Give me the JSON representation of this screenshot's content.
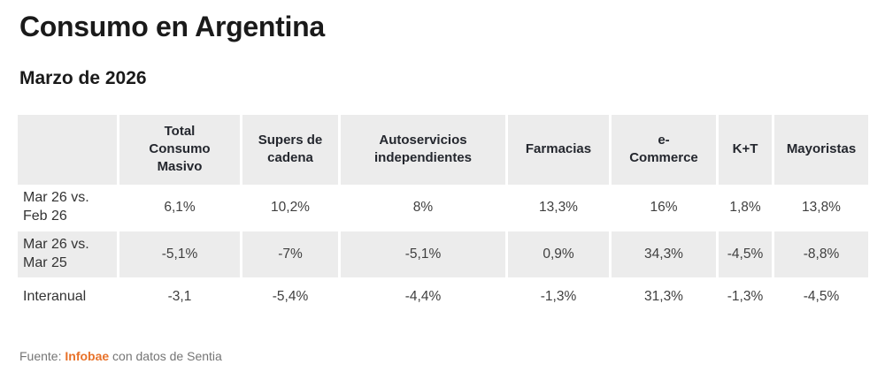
{
  "page": {
    "title": "Consumo en Argentina",
    "subtitle": "Marzo de 2026"
  },
  "chart_data": {
    "type": "table",
    "title": "Consumo en Argentina",
    "subtitle": "Marzo de 2026",
    "columns": [
      "Total Consumo Masivo",
      "Supers de cadena",
      "Autoservicios independientes",
      "Farmacias",
      "e-Commerce",
      "K+T",
      "Mayoristas"
    ],
    "rows": [
      {
        "label": "Mar 26 vs. Feb 26",
        "values": [
          6.1,
          10.2,
          8,
          13.3,
          16,
          1.8,
          13.8
        ]
      },
      {
        "label": "Mar 26 vs. Mar 25",
        "values": [
          -5.1,
          -7,
          -5.1,
          0.9,
          34.3,
          -4.5,
          -8.8
        ]
      },
      {
        "label": "Interanual",
        "values": [
          -3.1,
          -5.4,
          -4.4,
          -1.3,
          31.3,
          -1.3,
          -4.5
        ]
      }
    ]
  },
  "table": {
    "headers": [
      "",
      "Total\nConsumo\nMasivo",
      "Supers de\ncadena",
      "Autoservicios\nindependientes",
      "Farmacias",
      "e-\nCommerce",
      "K+T",
      "Mayoristas"
    ],
    "rows": [
      {
        "label": "Mar 26 vs.\nFeb 26",
        "values": [
          "6,1%",
          "10,2%",
          "8%",
          "13,3%",
          "16%",
          "1,8%",
          "13,8%"
        ]
      },
      {
        "label": "Mar 26 vs.\nMar 25",
        "values": [
          "-5,1%",
          "-7%",
          "-5,1%",
          "0,9%",
          "34,3%",
          "-4,5%",
          "-8,8%"
        ]
      },
      {
        "label": "Interanual",
        "values": [
          "-3,1",
          "-5,4%",
          "-4,4%",
          "-1,3%",
          "31,3%",
          "-1,3%",
          "-4,5%"
        ]
      }
    ]
  },
  "footer": {
    "source_prefix": "Fuente: ",
    "source_name": "Infobae",
    "source_suffix": " con datos de Sentia"
  },
  "colors": {
    "header_bg": "#ececec",
    "stripe_bg": "#ececec",
    "title_text": "#1a1a1a",
    "header_text": "#24272e",
    "body_text": "#3f3f3f",
    "footer_text": "#757575",
    "accent_orange": "#e8722a"
  }
}
